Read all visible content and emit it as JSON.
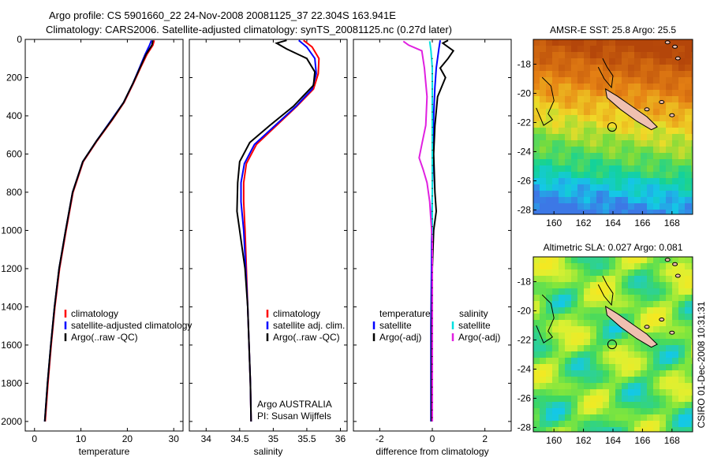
{
  "title_line1": "Argo profile: CS 5901660_22 24-Nov-2008 20081125_37 22.304S 163.941E",
  "title_line2": "Climatology: CARS2006. Satellite-adjusted climatology: synTS_20081125.nc (0.27d later)",
  "side_label": "CSIRO 01-Dec-2008 10:31:31",
  "colors": {
    "climatology": "#ff0000",
    "satellite": "#0000ff",
    "argo": "#000000",
    "sat_sal": "#00e0e0",
    "argo_adj_sal": "#e020e0"
  },
  "chart_data": [
    {
      "type": "line",
      "xlabel": "temperature",
      "xlim": [
        -2,
        32
      ],
      "ylim": [
        2050,
        0
      ],
      "xticks": [
        0,
        10,
        20,
        30
      ],
      "yticks": [
        0,
        200,
        400,
        600,
        800,
        1000,
        1200,
        1400,
        1600,
        1800,
        2000
      ],
      "legend": [
        "climatology",
        "satellite-adjusted climatology",
        "Argo(..raw -QC)"
      ],
      "series": [
        {
          "name": "climatology",
          "color": "#ff0000",
          "points": [
            [
              25.8,
              5
            ],
            [
              25.5,
              30
            ],
            [
              24.2,
              80
            ],
            [
              22.8,
              150
            ],
            [
              21.3,
              230
            ],
            [
              19.3,
              330
            ],
            [
              16.8,
              420
            ],
            [
              13.5,
              530
            ],
            [
              10.5,
              640
            ],
            [
              8.3,
              800
            ],
            [
              6.8,
              1000
            ],
            [
              5.4,
              1200
            ],
            [
              4.4,
              1400
            ],
            [
              3.6,
              1600
            ],
            [
              2.9,
              1800
            ],
            [
              2.3,
              2000
            ]
          ]
        },
        {
          "name": "satellite-adjusted climatology",
          "color": "#0000ff",
          "points": [
            [
              25.2,
              5
            ],
            [
              24.8,
              30
            ],
            [
              23.8,
              80
            ],
            [
              22.6,
              150
            ],
            [
              21.2,
              230
            ],
            [
              19.2,
              330
            ],
            [
              16.6,
              420
            ],
            [
              13.4,
              530
            ],
            [
              10.4,
              640
            ],
            [
              8.2,
              800
            ],
            [
              6.7,
              1000
            ],
            [
              5.3,
              1200
            ],
            [
              4.3,
              1400
            ],
            [
              3.5,
              1600
            ],
            [
              2.8,
              1800
            ],
            [
              2.2,
              2000
            ]
          ]
        },
        {
          "name": "Argo(..raw -QC)",
          "color": "#000000",
          "points": [
            [
              25.5,
              5
            ],
            [
              25.3,
              30
            ],
            [
              24.0,
              80
            ],
            [
              22.7,
              150
            ],
            [
              21.2,
              230
            ],
            [
              19.2,
              330
            ],
            [
              16.7,
              420
            ],
            [
              13.4,
              530
            ],
            [
              10.4,
              640
            ],
            [
              8.2,
              800
            ],
            [
              6.7,
              1000
            ],
            [
              5.3,
              1200
            ],
            [
              4.3,
              1400
            ],
            [
              3.5,
              1600
            ],
            [
              2.8,
              1800
            ],
            [
              2.2,
              2000
            ]
          ]
        }
      ]
    },
    {
      "type": "line",
      "xlabel": "salinity",
      "xlim": [
        33.75,
        36.1
      ],
      "ylim": [
        2050,
        0
      ],
      "xticks": [
        34,
        34.5,
        35,
        35.5,
        36
      ],
      "legend": [
        "climatology",
        "satellite adj. clim.",
        "Argo(..raw -QC)"
      ],
      "series": [
        {
          "name": "climatology",
          "color": "#ff0000",
          "points": [
            [
              35.45,
              5
            ],
            [
              35.58,
              40
            ],
            [
              35.68,
              100
            ],
            [
              35.67,
              180
            ],
            [
              35.6,
              260
            ],
            [
              35.35,
              350
            ],
            [
              35.05,
              450
            ],
            [
              34.75,
              550
            ],
            [
              34.6,
              650
            ],
            [
              34.56,
              750
            ],
            [
              34.56,
              850
            ],
            [
              34.58,
              1000
            ],
            [
              34.6,
              1200
            ],
            [
              34.62,
              1400
            ],
            [
              34.64,
              1600
            ],
            [
              34.66,
              1800
            ],
            [
              34.67,
              2000
            ]
          ]
        },
        {
          "name": "satellite adj. clim.",
          "color": "#0000ff",
          "points": [
            [
              35.38,
              5
            ],
            [
              35.5,
              40
            ],
            [
              35.62,
              100
            ],
            [
              35.64,
              180
            ],
            [
              35.58,
              260
            ],
            [
              35.34,
              350
            ],
            [
              35.03,
              450
            ],
            [
              34.72,
              550
            ],
            [
              34.57,
              650
            ],
            [
              34.52,
              750
            ],
            [
              34.52,
              850
            ],
            [
              34.56,
              1000
            ],
            [
              34.59,
              1200
            ],
            [
              34.62,
              1400
            ],
            [
              34.64,
              1600
            ],
            [
              34.66,
              1800
            ],
            [
              34.67,
              2000
            ]
          ]
        },
        {
          "name": "Argo(..raw -QC)",
          "color": "#000000",
          "points": [
            [
              35.2,
              5
            ],
            [
              35.05,
              20
            ],
            [
              35.2,
              50
            ],
            [
              35.5,
              100
            ],
            [
              35.62,
              170
            ],
            [
              35.6,
              240
            ],
            [
              35.3,
              350
            ],
            [
              34.95,
              450
            ],
            [
              34.65,
              540
            ],
            [
              34.5,
              640
            ],
            [
              34.47,
              750
            ],
            [
              34.46,
              900
            ],
            [
              34.52,
              1050
            ],
            [
              34.58,
              1200
            ],
            [
              34.62,
              1400
            ],
            [
              34.64,
              1600
            ],
            [
              34.66,
              1800
            ],
            [
              34.67,
              2000
            ]
          ]
        }
      ],
      "annotation": [
        "Argo AUSTRALIA",
        "PI: Susan Wijffels"
      ]
    },
    {
      "type": "line",
      "xlabel": "difference from climatology",
      "xlim": [
        -3,
        3
      ],
      "ylim": [
        2050,
        0
      ],
      "xticks": [
        -2,
        0,
        2
      ],
      "legend_left": {
        "title": "temperature",
        "items": [
          "satellite",
          "Argo(-adj)"
        ]
      },
      "legend_right": {
        "title": "salinity",
        "items": [
          "satellite",
          "Argo(-adj)"
        ]
      },
      "series": [
        {
          "name": "temperature satellite",
          "color": "#0000ff",
          "points": [
            [
              0.3,
              5
            ],
            [
              0.25,
              50
            ],
            [
              0.15,
              150
            ],
            [
              0.1,
              250
            ],
            [
              0.05,
              400
            ],
            [
              0.02,
              600
            ],
            [
              0.0,
              800
            ],
            [
              -0.02,
              1000
            ],
            [
              -0.03,
              1200
            ],
            [
              -0.05,
              1500
            ],
            [
              -0.05,
              2000
            ]
          ]
        },
        {
          "name": "temperature Argo(-adj)",
          "color": "#000000",
          "points": [
            [
              0.6,
              5
            ],
            [
              0.4,
              20
            ],
            [
              0.8,
              60
            ],
            [
              0.6,
              100
            ],
            [
              0.3,
              150
            ],
            [
              0.5,
              200
            ],
            [
              0.2,
              300
            ],
            [
              0.1,
              450
            ],
            [
              0.05,
              600
            ],
            [
              0.1,
              800
            ],
            [
              0.15,
              900
            ],
            [
              0.05,
              1000
            ],
            [
              0.0,
              1200
            ],
            [
              -0.02,
              1500
            ],
            [
              -0.03,
              2000
            ]
          ]
        },
        {
          "name": "salinity satellite",
          "color": "#00e0e0",
          "points": [
            [
              -0.1,
              10
            ],
            [
              -0.05,
              60
            ],
            [
              0.0,
              150
            ],
            [
              0.0,
              300
            ],
            [
              0.0,
              500
            ],
            [
              0.0,
              700
            ],
            [
              0.0,
              900
            ],
            [
              0.0,
              1100
            ],
            [
              0.0,
              1400
            ],
            [
              0.0,
              1700
            ],
            [
              0.0,
              2000
            ]
          ]
        },
        {
          "name": "salinity Argo(-adj)",
          "color": "#e020e0",
          "points": [
            [
              -1.1,
              10
            ],
            [
              -0.9,
              30
            ],
            [
              -0.4,
              60
            ],
            [
              -0.3,
              150
            ],
            [
              -0.2,
              300
            ],
            [
              -0.25,
              450
            ],
            [
              -0.4,
              550
            ],
            [
              -0.5,
              620
            ],
            [
              -0.35,
              680
            ],
            [
              -0.2,
              750
            ],
            [
              -0.1,
              850
            ],
            [
              -0.05,
              950
            ],
            [
              0.0,
              1050
            ],
            [
              0.0,
              1300
            ],
            [
              0.0,
              1600
            ],
            [
              0.0,
              2000
            ]
          ]
        }
      ]
    },
    {
      "type": "heatmap",
      "title": "AMSR-E SST: 25.8 Argo: 25.5",
      "xticks": [
        160,
        162,
        164,
        166,
        168
      ],
      "yticks": [
        -18,
        -20,
        -22,
        -24,
        -26,
        -28
      ]
    },
    {
      "type": "heatmap",
      "title": "Altimetric SLA: 0.027 Argo: 0.081",
      "xticks": [
        160,
        162,
        164,
        166,
        168
      ],
      "yticks": [
        -18,
        -20,
        -22,
        -24,
        -26,
        -28
      ]
    }
  ]
}
